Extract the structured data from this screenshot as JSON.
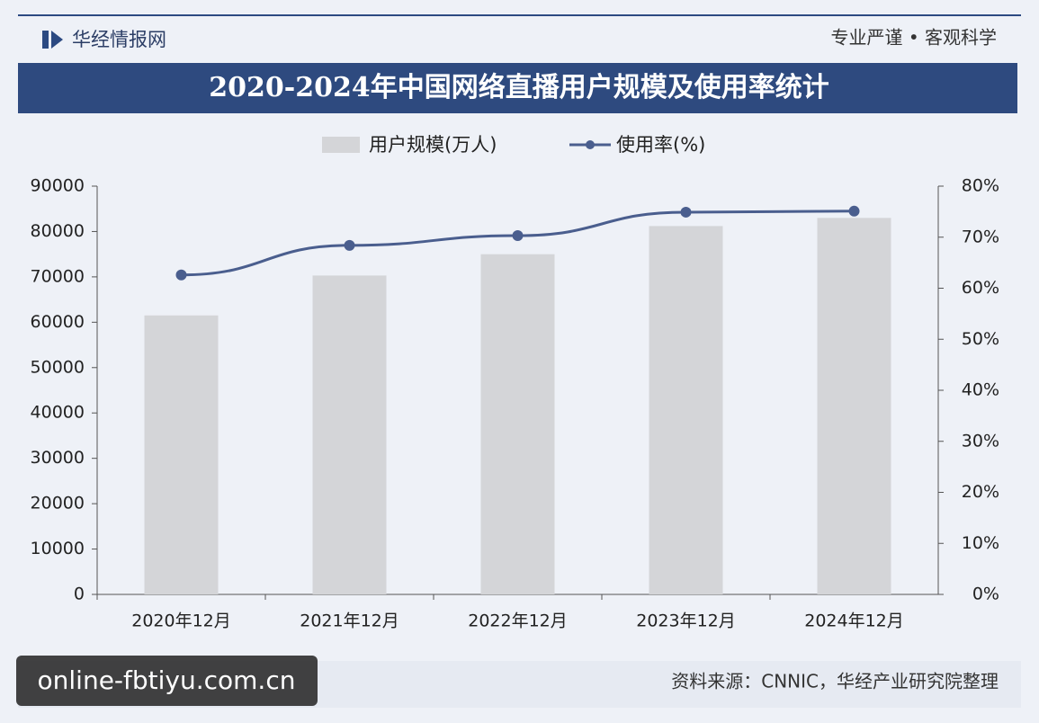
{
  "header": {
    "brand": "华经情报网",
    "slogan": "专业严谨 • 客观科学"
  },
  "chart_data": {
    "type": "bar",
    "title": "2020-2024年中国网络直播用户规模及使用率统计",
    "categories": [
      "2020年12月",
      "2021年12月",
      "2022年12月",
      "2023年12月",
      "2024年12月"
    ],
    "series": [
      {
        "name": "用户规模(万人)",
        "type": "bar",
        "color": "#d4d5d8",
        "values": [
          61500,
          70300,
          75000,
          81200,
          83000
        ]
      },
      {
        "name": "使用率(%)",
        "type": "line",
        "axis": "y2",
        "color": "#4a5e8e",
        "values": [
          62.6,
          68.4,
          70.3,
          74.9,
          75.1
        ]
      }
    ],
    "ylim": [
      0,
      90000
    ],
    "yticks": [
      0,
      10000,
      20000,
      30000,
      40000,
      50000,
      60000,
      70000,
      80000,
      90000
    ],
    "y2lim": [
      0,
      80
    ],
    "y2ticks": [
      {
        "value": 0,
        "label": "0%"
      },
      {
        "value": 10,
        "label": "10%"
      },
      {
        "value": 20,
        "label": "20%"
      },
      {
        "value": 30,
        "label": "30%"
      },
      {
        "value": 40,
        "label": "40%"
      },
      {
        "value": 50,
        "label": "50%"
      },
      {
        "value": 60,
        "label": "60%"
      },
      {
        "value": 70,
        "label": "70%"
      },
      {
        "value": 80,
        "label": "80%"
      }
    ],
    "grid": false,
    "legend": "top"
  },
  "footer": {
    "source": "资料来源：CNNIC，华经产业研究院整理",
    "watermark": "online-fbtiyu.com.cn"
  }
}
